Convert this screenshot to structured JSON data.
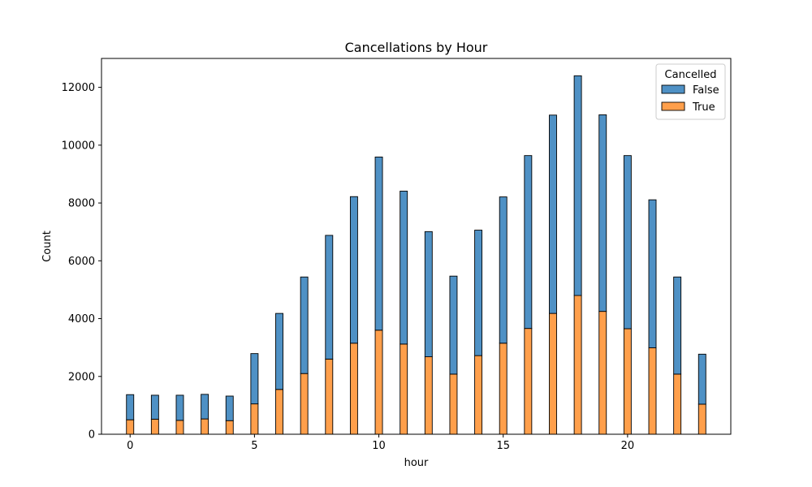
{
  "chart_data": {
    "type": "bar",
    "stacked": true,
    "title": "Cancellations by Hour",
    "xlabel": "hour",
    "ylabel": "Count",
    "xlim": [
      -1.15,
      24.15
    ],
    "ylim": [
      0,
      13000
    ],
    "x_ticks": [
      0,
      5,
      10,
      15,
      20
    ],
    "y_ticks": [
      0,
      2000,
      4000,
      6000,
      8000,
      10000,
      12000
    ],
    "grid": false,
    "legend": {
      "title": "Cancelled",
      "position": "top-right"
    },
    "hours": [
      0,
      1,
      2,
      3,
      4,
      5,
      6,
      7,
      8,
      9,
      10,
      11,
      12,
      13,
      14,
      15,
      16,
      17,
      18,
      19,
      20,
      21,
      22,
      23
    ],
    "series": [
      {
        "name": "True",
        "color": "#ff9f4b",
        "values": [
          500,
          520,
          480,
          530,
          470,
          1050,
          1550,
          2100,
          2600,
          3150,
          3600,
          3120,
          2680,
          2080,
          2720,
          3150,
          3660,
          4180,
          4800,
          4250,
          3650,
          2990,
          2080,
          1040
        ]
      },
      {
        "name": "False",
        "color": "#4f91c5",
        "values": [
          870,
          830,
          870,
          850,
          850,
          1740,
          2630,
          3340,
          4280,
          5070,
          5990,
          5290,
          4330,
          3390,
          4340,
          5060,
          5980,
          6860,
          7600,
          6800,
          5990,
          5120,
          3360,
          1730
        ]
      }
    ]
  }
}
